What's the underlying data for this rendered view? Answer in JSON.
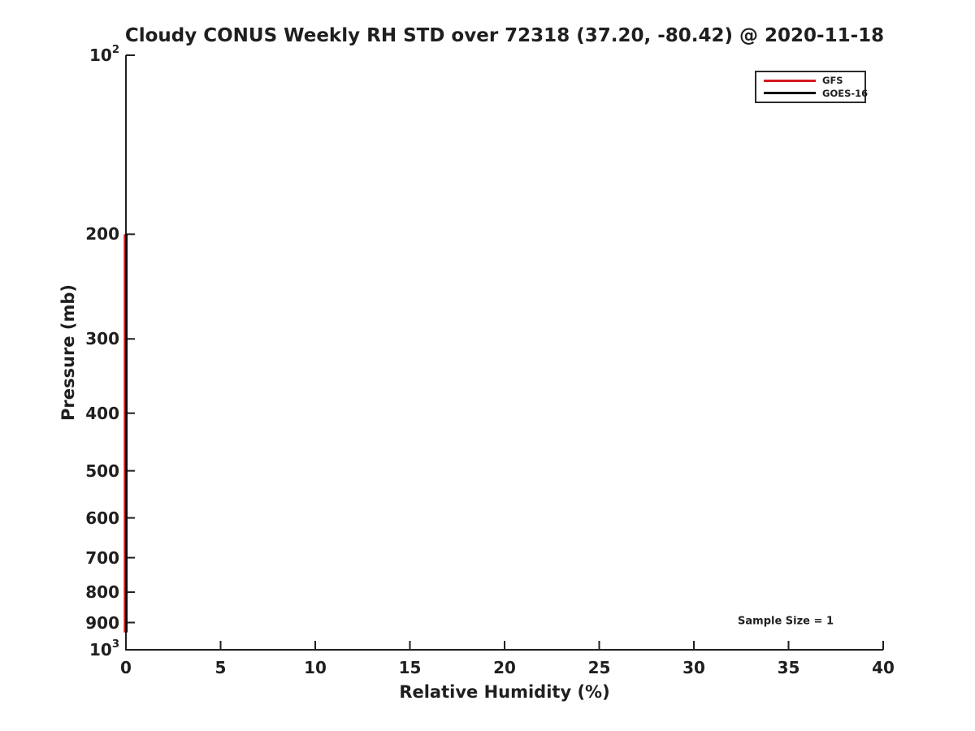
{
  "chart_data": {
    "type": "line",
    "title": "Cloudy CONUS Weekly RH STD over 72318 (37.20, -80.42) @ 2020-11-18",
    "xlabel": "Relative Humidity (%)",
    "ylabel": "Pressure (mb)",
    "x_axis": {
      "min": 0,
      "max": 40,
      "ticks": [
        0,
        5,
        10,
        15,
        20,
        25,
        30,
        35,
        40
      ],
      "tick_labels": [
        "0",
        "5",
        "10",
        "15",
        "20",
        "25",
        "30",
        "35",
        "40"
      ]
    },
    "y_axis": {
      "scale": "log10",
      "min": 100,
      "max": 1000,
      "inverted": true,
      "ticks": [
        100,
        200,
        300,
        400,
        500,
        600,
        700,
        800,
        900,
        1000
      ],
      "tick_labels": [
        "10^2",
        "200",
        "300",
        "400",
        "500",
        "600",
        "700",
        "800",
        "900",
        "10^3"
      ]
    },
    "series": [
      {
        "name": "GFS",
        "color": "#d7191c",
        "points": [
          {
            "rh_std_percent": 0,
            "pressure_mb": 200
          },
          {
            "rh_std_percent": 0,
            "pressure_mb": 935
          }
        ]
      },
      {
        "name": "GOES-16",
        "color": "#000000",
        "points": [
          {
            "rh_std_percent": 0,
            "pressure_mb": 200
          },
          {
            "rh_std_percent": 0,
            "pressure_mb": 935
          }
        ]
      }
    ],
    "legend": {
      "position": "upper right",
      "entries": [
        "GFS",
        "GOES-16"
      ]
    },
    "annotation": "Sample Size = 1",
    "grid": false
  },
  "colors": {
    "text": "#1f1f1f",
    "axis": "#1f1f1f",
    "background": "#ffffff"
  }
}
